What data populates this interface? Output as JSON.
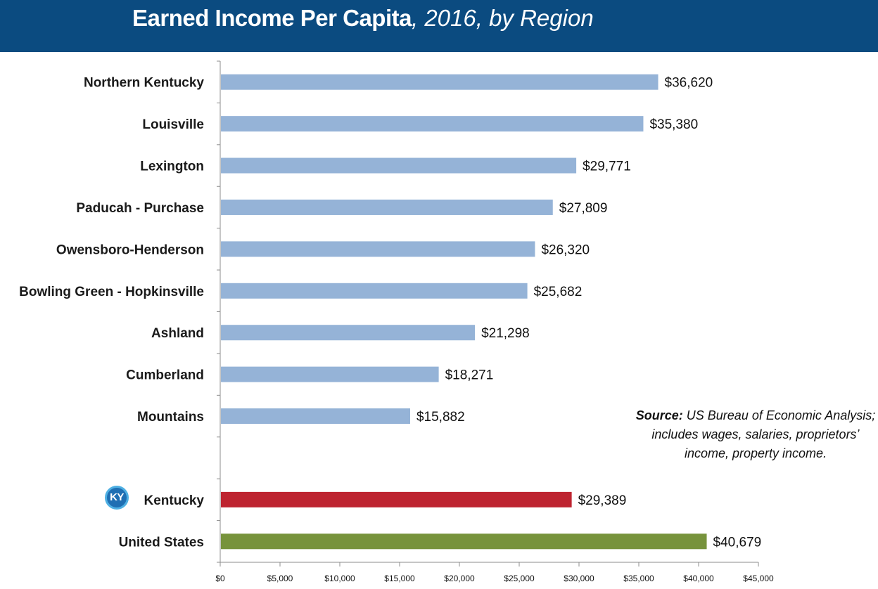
{
  "header": {
    "title_main": "Earned Income Per Capita",
    "title_sub": ", 2016, by Region"
  },
  "badge": {
    "text": "KY"
  },
  "source": {
    "label": "Source:",
    "text": " US Bureau of Economic Analysis; includes wages, salaries, proprietors’ income, property income."
  },
  "colors": {
    "header_bg": "#0b4b80",
    "region_bar": "#95b3d7",
    "kentucky_bar": "#be2430",
    "us_bar": "#77933c"
  },
  "chart_data": {
    "type": "bar",
    "orientation": "horizontal",
    "title": "Earned Income Per Capita, 2016, by Region",
    "categories": [
      "Northern Kentucky",
      "Louisville",
      "Lexington",
      "Paducah - Purchase",
      "Owensboro-Henderson",
      "Bowling Green - Hopkinsville",
      "Ashland",
      "Cumberland",
      "Mountains",
      "",
      "Kentucky",
      "United States"
    ],
    "values": [
      36620,
      35380,
      29771,
      27809,
      26320,
      25682,
      21298,
      18271,
      15882,
      null,
      29389,
      40679
    ],
    "value_labels": [
      "$36,620",
      "$35,380",
      "$29,771",
      "$27,809",
      "$26,320",
      "$25,682",
      "$21,298",
      "$18,271",
      "$15,882",
      "",
      "$29,389",
      "$40,679"
    ],
    "bar_colors": [
      "#95b3d7",
      "#95b3d7",
      "#95b3d7",
      "#95b3d7",
      "#95b3d7",
      "#95b3d7",
      "#95b3d7",
      "#95b3d7",
      "#95b3d7",
      "",
      "#be2430",
      "#77933c"
    ],
    "xlim": [
      0,
      45000
    ],
    "xticks": [
      0,
      5000,
      10000,
      15000,
      20000,
      25000,
      30000,
      35000,
      40000,
      45000
    ],
    "xtick_labels": [
      "$0",
      "$5,000",
      "$10,000",
      "$15,000",
      "$20,000",
      "$25,000",
      "$30,000",
      "$35,000",
      "$40,000",
      "$45,000"
    ],
    "grid": false,
    "legend": "none"
  }
}
